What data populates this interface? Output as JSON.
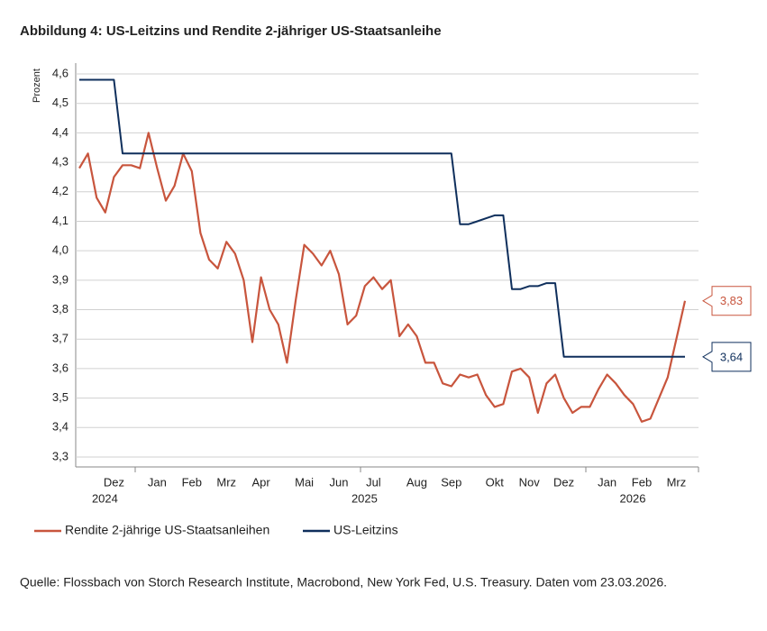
{
  "chart_data": {
    "type": "line",
    "title": "Abbildung 4: US-Leitzins und Rendite 2-jähriger US-Staatsanleihe",
    "y_label": "Prozent",
    "source": "Quelle: Flossbach von Storch Research Institute, Macrobond, New York Fed, U.S. Treasury. Daten vom 23.03.2026.",
    "categories": [
      null,
      null,
      null,
      null,
      "Dez",
      null,
      null,
      null,
      null,
      "Jan",
      null,
      null,
      null,
      "Feb",
      null,
      null,
      null,
      "Mrz",
      null,
      null,
      null,
      "Apr",
      null,
      null,
      null,
      null,
      "Mai",
      null,
      null,
      null,
      "Jun",
      null,
      null,
      null,
      "Jul",
      null,
      null,
      null,
      null,
      "Aug",
      null,
      null,
      null,
      "Sep",
      null,
      null,
      null,
      null,
      "Okt",
      null,
      null,
      null,
      "Nov",
      null,
      null,
      null,
      "Dez",
      null,
      null,
      null,
      null,
      "Jan",
      null,
      null,
      null,
      "Feb",
      null,
      null,
      null,
      "Mrz",
      null
    ],
    "year_labels": [
      null,
      null,
      null,
      null,
      "2024",
      null,
      null,
      null,
      null,
      null,
      null,
      null,
      null,
      null,
      null,
      null,
      null,
      null,
      null,
      null,
      null,
      null,
      null,
      null,
      null,
      null,
      null,
      null,
      null,
      null,
      null,
      null,
      null,
      null,
      "2025",
      null,
      null,
      null,
      null,
      null,
      null,
      null,
      null,
      null,
      null,
      null,
      null,
      null,
      null,
      null,
      null,
      null,
      null,
      null,
      null,
      null,
      null,
      null,
      null,
      null,
      null,
      null,
      null,
      null,
      null,
      "2026",
      null,
      null,
      null,
      null,
      null
    ],
    "series": [
      {
        "name": "Rendite 2-jährige US-Staatsanleihen",
        "color": "#c8553d",
        "end_label": "3,83",
        "values": [
          4.28,
          4.33,
          4.18,
          4.13,
          4.25,
          4.29,
          4.29,
          4.28,
          4.4,
          4.28,
          4.17,
          4.22,
          4.33,
          4.27,
          4.06,
          3.97,
          3.94,
          4.03,
          3.99,
          3.9,
          3.69,
          3.91,
          3.8,
          3.75,
          3.62,
          3.83,
          4.02,
          3.99,
          3.95,
          4.0,
          3.92,
          3.75,
          3.78,
          3.88,
          3.91,
          3.87,
          3.9,
          3.71,
          3.75,
          3.71,
          3.62,
          3.62,
          3.55,
          3.54,
          3.58,
          3.57,
          3.58,
          3.51,
          3.47,
          3.48,
          3.59,
          3.6,
          3.57,
          3.45,
          3.55,
          3.58,
          3.5,
          3.45,
          3.47,
          3.47,
          3.53,
          3.58,
          3.55,
          3.51,
          3.48,
          3.42,
          3.43,
          3.5,
          3.57,
          3.7,
          3.83
        ]
      },
      {
        "name": "US-Leitzins",
        "color": "#0f2f5c",
        "end_label": "3,64",
        "values": [
          4.58,
          4.58,
          4.58,
          4.58,
          4.58,
          4.33,
          4.33,
          4.33,
          4.33,
          4.33,
          4.33,
          4.33,
          4.33,
          4.33,
          4.33,
          4.33,
          4.33,
          4.33,
          4.33,
          4.33,
          4.33,
          4.33,
          4.33,
          4.33,
          4.33,
          4.33,
          4.33,
          4.33,
          4.33,
          4.33,
          4.33,
          4.33,
          4.33,
          4.33,
          4.33,
          4.33,
          4.33,
          4.33,
          4.33,
          4.33,
          4.33,
          4.33,
          4.33,
          4.33,
          4.09,
          4.09,
          4.1,
          4.11,
          4.12,
          4.12,
          3.87,
          3.87,
          3.88,
          3.88,
          3.89,
          3.89,
          3.64,
          3.64,
          3.64,
          3.64,
          3.64,
          3.64,
          3.64,
          3.64,
          3.64,
          3.64,
          3.64,
          3.64,
          3.64,
          3.64,
          3.64
        ]
      }
    ],
    "ylim": [
      3.3,
      4.6
    ],
    "yticks": [
      {
        "value": 3.3,
        "label": "3,3"
      },
      {
        "value": 3.4,
        "label": "3,4"
      },
      {
        "value": 3.5,
        "label": "3,5"
      },
      {
        "value": 3.6,
        "label": "3,6"
      },
      {
        "value": 3.7,
        "label": "3,7"
      },
      {
        "value": 3.8,
        "label": "3,8"
      },
      {
        "value": 3.9,
        "label": "3,9"
      },
      {
        "value": 4.0,
        "label": "4,0"
      },
      {
        "value": 4.1,
        "label": "4,1"
      },
      {
        "value": 4.2,
        "label": "4,2"
      },
      {
        "value": 4.3,
        "label": "4,3"
      },
      {
        "value": 4.4,
        "label": "4,4"
      },
      {
        "value": 4.5,
        "label": "4,5"
      },
      {
        "value": 4.6,
        "label": "4,6"
      }
    ],
    "grid": true
  }
}
